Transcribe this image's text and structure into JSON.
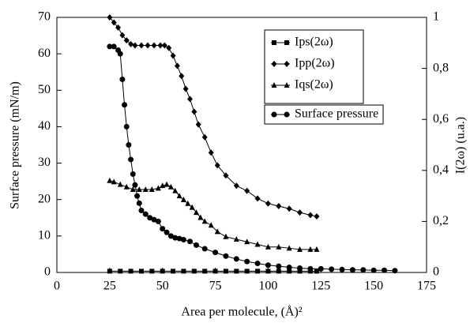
{
  "chart_data": {
    "type": "line",
    "xlabel": "Area per molecule, (Å)²",
    "ylabel": "Surface pressure  (mN/m)",
    "y2label": "I(2ω) (u.a.)",
    "xlim": [
      0,
      175
    ],
    "xticks": [
      0,
      25,
      50,
      75,
      100,
      125,
      150,
      175
    ],
    "ylim": [
      0,
      70
    ],
    "yticks": [
      0,
      10,
      20,
      30,
      40,
      50,
      60,
      70
    ],
    "y2lim": [
      0,
      1
    ],
    "y2ticks": [
      0,
      {
        "value": 0.2,
        "label": "0,2"
      },
      {
        "value": 0.4,
        "label": "0,4"
      },
      {
        "value": 0.6,
        "label": "0,6"
      },
      {
        "value": 0.8,
        "label": "0,8"
      },
      1
    ],
    "series": [
      {
        "name": "Ips(2ω)",
        "color": "#000000",
        "marker": "square",
        "axis": "y2",
        "x": [
          25,
          30,
          35,
          40,
          45,
          50,
          55,
          60,
          65,
          70,
          75,
          80,
          85,
          90,
          95,
          100,
          105,
          110,
          115,
          120,
          123
        ],
        "values": [
          0.005,
          0.005,
          0.005,
          0.005,
          0.005,
          0.005,
          0.005,
          0.005,
          0.005,
          0.005,
          0.005,
          0.005,
          0.005,
          0.005,
          0.005,
          0.005,
          0.005,
          0.005,
          0.005,
          0.005,
          0.005
        ]
      },
      {
        "name": "Ipp(2ω)",
        "color": "#000000",
        "marker": "diamond",
        "axis": "y2",
        "x": [
          25,
          27,
          29,
          31,
          33,
          35,
          37,
          40,
          43,
          46,
          49,
          51,
          53,
          55,
          57,
          59,
          61,
          63,
          65,
          67,
          70,
          73,
          76,
          80,
          85,
          90,
          95,
          100,
          105,
          110,
          115,
          120,
          123
        ],
        "values": [
          1.0,
          0.98,
          0.96,
          0.93,
          0.91,
          0.895,
          0.89,
          0.89,
          0.89,
          0.89,
          0.89,
          0.89,
          0.88,
          0.85,
          0.81,
          0.77,
          0.72,
          0.68,
          0.63,
          0.58,
          0.53,
          0.47,
          0.42,
          0.38,
          0.34,
          0.32,
          0.29,
          0.27,
          0.26,
          0.25,
          0.235,
          0.225,
          0.22
        ]
      },
      {
        "name": "Iqs(2ω)",
        "color": "#000000",
        "marker": "triangle",
        "axis": "y2",
        "x": [
          25,
          27,
          30,
          33,
          36,
          39,
          42,
          45,
          48,
          50,
          52,
          54,
          56,
          58,
          60,
          62,
          64,
          66,
          68,
          70,
          73,
          76,
          80,
          85,
          90,
          95,
          100,
          105,
          110,
          115,
          120,
          123
        ],
        "values": [
          0.36,
          0.355,
          0.345,
          0.335,
          0.325,
          0.325,
          0.325,
          0.325,
          0.33,
          0.34,
          0.345,
          0.335,
          0.32,
          0.3,
          0.285,
          0.27,
          0.255,
          0.235,
          0.215,
          0.2,
          0.185,
          0.16,
          0.14,
          0.13,
          0.12,
          0.11,
          0.1,
          0.1,
          0.095,
          0.09,
          0.09,
          0.09
        ]
      },
      {
        "name": "Surface pressure",
        "color": "#000000",
        "marker": "circle",
        "axis": "y",
        "x": [
          25,
          27,
          29,
          30,
          31,
          32,
          33,
          34,
          35,
          36,
          37,
          38,
          39,
          40,
          42,
          44,
          46,
          48,
          50,
          52,
          54,
          56,
          58,
          60,
          63,
          66,
          70,
          75,
          80,
          85,
          90,
          95,
          100,
          105,
          110,
          115,
          120,
          125,
          130,
          135,
          140,
          145,
          150,
          155,
          160
        ],
        "values": [
          62,
          62,
          61,
          60,
          53,
          46,
          40,
          35,
          31,
          27,
          24,
          21,
          19,
          17,
          16,
          15,
          14.5,
          14,
          12,
          11,
          10,
          9.5,
          9.3,
          9,
          8.5,
          7.5,
          6.5,
          5.5,
          4.5,
          3.7,
          3,
          2.5,
          2,
          1.7,
          1.4,
          1.2,
          1,
          1,
          0.9,
          0.8,
          0.7,
          0.7,
          0.6,
          0.6,
          0.5
        ]
      }
    ]
  }
}
